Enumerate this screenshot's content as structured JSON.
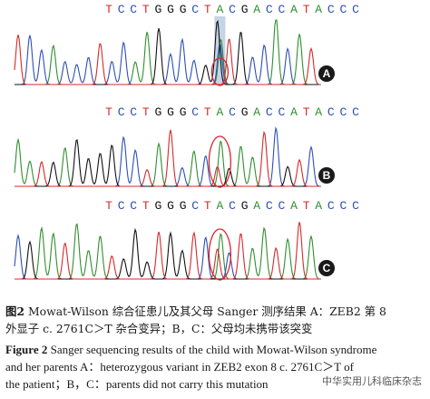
{
  "panels": [
    {
      "id": "A",
      "label": "A",
      "sequence": [
        "T",
        "C",
        "C",
        "T",
        "G",
        "G",
        "G",
        "C",
        "T",
        "A",
        "C",
        "G",
        "A",
        "C",
        "C",
        "A",
        "T",
        "A",
        "C",
        "C",
        "C"
      ],
      "variant_index": 9,
      "shaded": true
    },
    {
      "id": "B",
      "label": "B",
      "sequence": [
        "T",
        "C",
        "C",
        "T",
        "G",
        "G",
        "G",
        "C",
        "T",
        "A",
        "C",
        "G",
        "A",
        "C",
        "C",
        "A",
        "T",
        "A",
        "C",
        "C",
        "C"
      ],
      "variant_index": 9,
      "shaded": false
    },
    {
      "id": "C",
      "label": "C",
      "sequence": [
        "T",
        "C",
        "C",
        "T",
        "G",
        "G",
        "G",
        "C",
        "T",
        "A",
        "C",
        "G",
        "A",
        "C",
        "C",
        "A",
        "T",
        "A",
        "C",
        "C",
        "C"
      ],
      "variant_index": 9,
      "shaded": false
    }
  ],
  "colors": {
    "A": "#2f8f2f",
    "C": "#2d4fb5",
    "G": "#111111",
    "T": "#d42a2a",
    "circle": "#d8262a",
    "highlight": "#9fb7d6"
  },
  "caption": {
    "cn_line1_label": "图2",
    "cn_line1_text": "Mowat-Wilson 综合征患儿及其父母 Sanger 测序结果",
    "cn_line1_tail": "A：ZEB2 第 8",
    "cn_line2": "外显子 c. 2761C＞T 杂合变异；B，C：父母均未携带该突变",
    "en_label": "Figure 2",
    "en_line1_text": "Sanger sequencing results of the child with Mowat-Wilson syndrome",
    "en_line2": "and her parents   A：heterozygous variant in ZEB2 exon 8 c. 2761C＞T of",
    "en_line3": "the patient；B，C：parents did not carry this mutation"
  },
  "watermark": "中华实用儿科临床杂志"
}
